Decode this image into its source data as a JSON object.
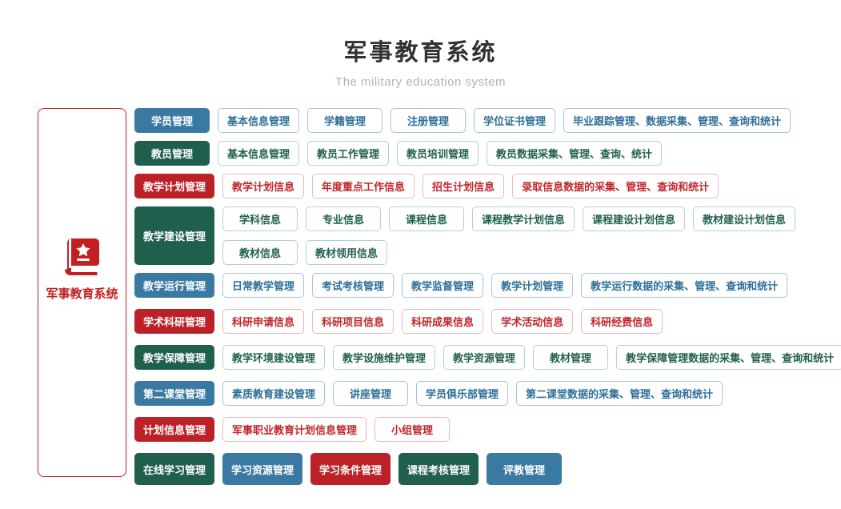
{
  "header": {
    "title": "军事教育系统",
    "subtitle": "The military education system"
  },
  "root": {
    "label": "军事教育系统",
    "icon": "book-star-icon"
  },
  "colors": {
    "blue": "#3a79a2",
    "green": "#1f5f4e",
    "red": "#bb2127",
    "blue_border": "#a6c5d9",
    "green_border": "#b4d1c8",
    "red_border": "#ecb7b9",
    "blue_text": "#2d6f99",
    "green_text": "#20604f",
    "red_text": "#c2262c",
    "accent_red": "#c41f20",
    "title_color": "#2f3133",
    "subtitle_color": "#b3b3b3"
  },
  "rows": [
    {
      "category": "学员管理",
      "color": "blue",
      "lines": [
        [
          "基本信息管理",
          "学籍管理",
          "注册管理",
          "学位证书管理",
          "毕业跟踪管理、数据采集、管理、查询和统计"
        ]
      ]
    },
    {
      "category": "教员管理",
      "color": "green",
      "lines": [
        [
          "基本信息管理",
          "教员工作管理",
          "教员培训管理",
          "教员数据采集、管理、查询、统计"
        ]
      ]
    },
    {
      "category": "教学计划管理",
      "color": "red",
      "lines": [
        [
          "教学计划信息",
          "年度重点工作信息",
          "招生计划信息",
          "录取信息数据的采集、管理、查询和统计"
        ]
      ]
    },
    {
      "category": "教学建设管理",
      "color": "green",
      "lines": [
        [
          "学科信息",
          "专业信息",
          "课程信息",
          "课程教学计划信息",
          "课程建设计划信息",
          "教材建设计划信息"
        ],
        [
          "教材信息",
          "教材领用信息"
        ]
      ]
    },
    {
      "category": "教学运行管理",
      "color": "blue",
      "lines": [
        [
          "日常教学管理",
          "考试考核管理",
          "教学监督管理",
          "教学计划管理",
          "教学运行数据的采集、管理、查询和统计"
        ]
      ]
    },
    {
      "category": "学术科研管理",
      "color": "red",
      "lines": [
        [
          "科研申请信息",
          "科研项目信息",
          "科研成果信息",
          "学术活动信息",
          "科研经费信息"
        ]
      ]
    },
    {
      "category": "教学保障管理",
      "color": "green",
      "lines": [
        [
          "教学环境建设管理",
          "教学设施维护管理",
          "教学资源管理",
          "教材管理",
          "教学保障管理数据的采集、管理、查询和统计"
        ]
      ]
    },
    {
      "category": "第二课堂管理",
      "color": "blue",
      "lines": [
        [
          "素质教育建设管理",
          "讲座管理",
          "学员俱乐部管理",
          "第二课堂数据的采集、管理、查询和统计"
        ]
      ]
    },
    {
      "category": "计划信息管理",
      "color": "red",
      "lines": [
        [
          "军事职业教育计划信息管理",
          "小组管理"
        ]
      ]
    },
    {
      "category": "在线学习管理",
      "color": "green",
      "variant": "large-filled",
      "lines": [
        [
          {
            "label": "学习资源管理",
            "color": "blue"
          },
          {
            "label": "学习条件管理",
            "color": "red"
          },
          {
            "label": "课程考核管理",
            "color": "green"
          },
          {
            "label": "评教管理",
            "color": "blue"
          }
        ]
      ]
    }
  ]
}
